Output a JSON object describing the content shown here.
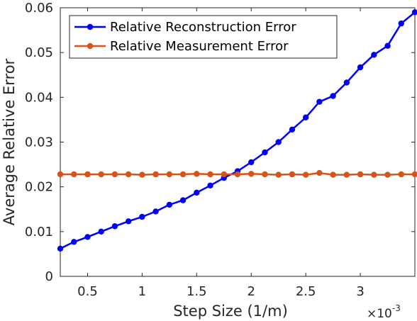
{
  "chart_data": {
    "type": "line",
    "xlabel": "Step Size (1/m)",
    "ylabel": "Average Relative Error",
    "x_multiplier": "×10",
    "x_multiplier_exponent": "-3",
    "xlim": [
      0.25,
      3.5
    ],
    "ylim": [
      0,
      0.06
    ],
    "x_ticks": [
      0.5,
      1,
      1.5,
      2,
      2.5,
      3
    ],
    "x_tick_labels": [
      "0.5",
      "1",
      "1.5",
      "2",
      "2.5",
      "3"
    ],
    "y_ticks": [
      0,
      0.01,
      0.02,
      0.03,
      0.04,
      0.05,
      0.06
    ],
    "y_tick_labels": [
      "0",
      "0.01",
      "0.02",
      "0.03",
      "0.04",
      "0.05",
      "0.06"
    ],
    "grid": false,
    "legend_position": "top-left",
    "x": [
      0.25,
      0.375,
      0.5,
      0.625,
      0.75,
      0.875,
      1.0,
      1.125,
      1.25,
      1.375,
      1.5,
      1.625,
      1.75,
      1.875,
      2.0,
      2.125,
      2.25,
      2.375,
      2.5,
      2.625,
      2.75,
      2.875,
      3.0,
      3.125,
      3.25,
      3.375,
      3.5
    ],
    "series": [
      {
        "name": "Relative Reconstruction Error",
        "color": "#0000ff",
        "values": [
          0.0062,
          0.0077,
          0.0088,
          0.01,
          0.0112,
          0.0123,
          0.0133,
          0.0145,
          0.016,
          0.017,
          0.0187,
          0.0203,
          0.022,
          0.0235,
          0.0255,
          0.0277,
          0.03,
          0.0328,
          0.0355,
          0.039,
          0.0403,
          0.0433,
          0.0467,
          0.0495,
          0.0515,
          0.0565,
          0.059
        ]
      },
      {
        "name": "Relative Measurement Error",
        "color": "#d95319",
        "values": [
          0.0228,
          0.0228,
          0.0228,
          0.0228,
          0.0228,
          0.0228,
          0.0227,
          0.0228,
          0.0228,
          0.0228,
          0.0229,
          0.0228,
          0.0228,
          0.0228,
          0.0229,
          0.0228,
          0.0227,
          0.0228,
          0.0227,
          0.0231,
          0.0227,
          0.0227,
          0.0228,
          0.0227,
          0.0227,
          0.0228,
          0.0228
        ]
      }
    ]
  }
}
